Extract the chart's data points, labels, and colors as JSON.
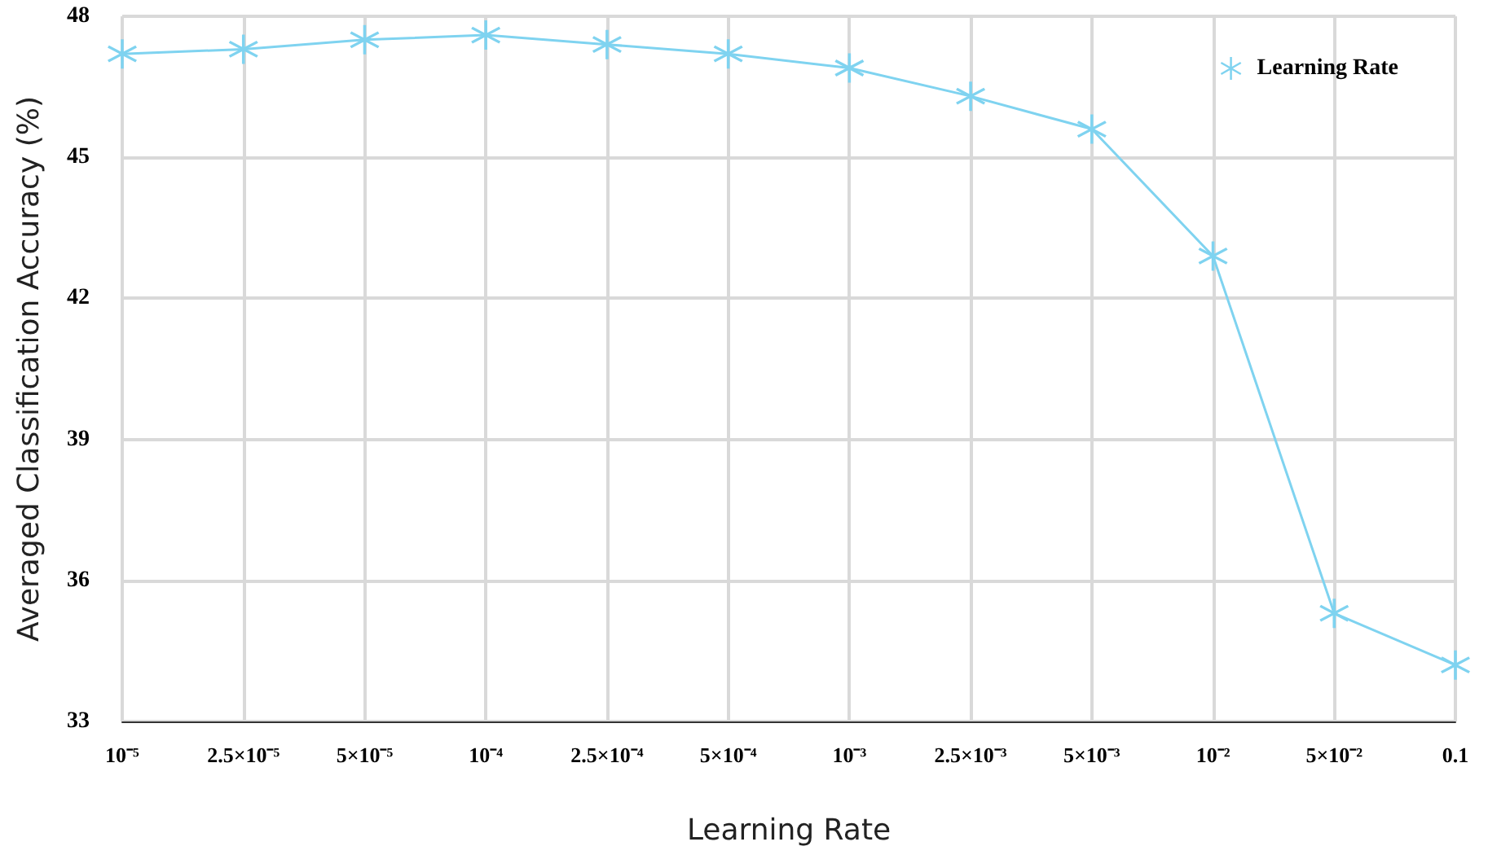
{
  "chart_data": {
    "type": "line",
    "xlabel": "Learning Rate",
    "ylabel": "Averaged Classification Accuracy (%)",
    "categories": [
      "10⁻⁵",
      "2.5×10⁻⁵",
      "5×10⁻⁵",
      "10⁻⁴",
      "2.5×10⁻⁴",
      "5×10⁻⁴",
      "10⁻³",
      "2.5×10⁻³",
      "5×10⁻³",
      "10⁻²",
      "5×10⁻²",
      "0.1"
    ],
    "series": [
      {
        "name": "Learning Rate",
        "color": "#7fd3f0",
        "values": [
          47.2,
          47.3,
          47.5,
          47.6,
          47.4,
          47.2,
          46.9,
          46.3,
          45.6,
          42.9,
          35.3,
          34.2
        ]
      }
    ],
    "ylim": [
      33,
      48
    ],
    "yticks": [
      33,
      36,
      39,
      42,
      45,
      48
    ],
    "grid": true,
    "legend": "top right",
    "marker": "cross",
    "line_style": "solid"
  }
}
